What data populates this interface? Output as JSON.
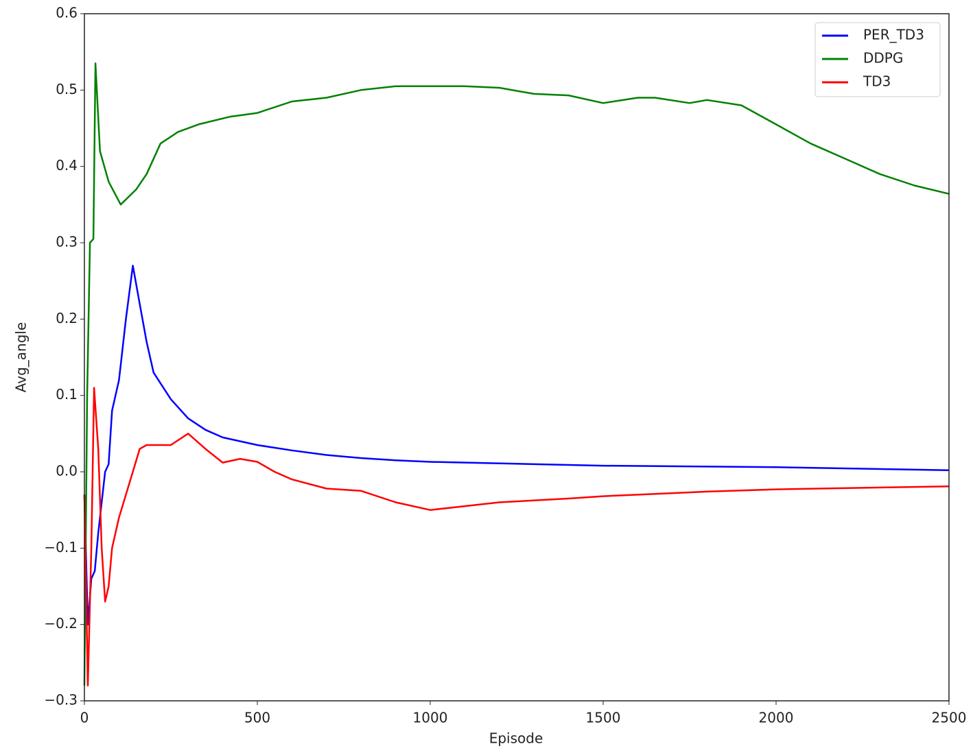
{
  "chart_data": {
    "type": "line",
    "xlabel": "Episode",
    "ylabel": "Avg_angle",
    "xlim": [
      0,
      2500
    ],
    "xticks": [
      0,
      500,
      1000,
      1500,
      2000,
      2500
    ],
    "ylim": [
      -0.3,
      0.6
    ],
    "yticks": [
      {
        "value": -0.3,
        "label": "−0.3"
      },
      {
        "value": -0.2,
        "label": "−0.2"
      },
      {
        "value": -0.1,
        "label": "−0.1"
      },
      {
        "value": 0,
        "label": "0.0"
      },
      0.1,
      0.2,
      0.3,
      0.4,
      0.5,
      0.6
    ],
    "legend": "upper right",
    "series": [
      {
        "name": "PER_TD3",
        "color": "#0000ff",
        "x": [
          0,
          10,
          20,
          30,
          40,
          50,
          60,
          70,
          80,
          100,
          120,
          140,
          160,
          180,
          200,
          250,
          300,
          350,
          400,
          500,
          600,
          700,
          800,
          900,
          1000,
          1300,
          1500,
          2000,
          2500
        ],
        "values": [
          -0.03,
          -0.2,
          -0.14,
          -0.13,
          -0.08,
          -0.04,
          0.0,
          0.01,
          0.08,
          0.12,
          0.2,
          0.27,
          0.22,
          0.17,
          0.13,
          0.095,
          0.07,
          0.055,
          0.045,
          0.035,
          0.028,
          0.022,
          0.018,
          0.015,
          0.013,
          0.01,
          0.008,
          0.006,
          0.002
        ]
      },
      {
        "name": "DDPG",
        "color": "#008000",
        "x": [
          0,
          8,
          16,
          26,
          32,
          45,
          70,
          105,
          150,
          180,
          220,
          270,
          330,
          420,
          500,
          600,
          700,
          800,
          900,
          1000,
          1100,
          1200,
          1300,
          1400,
          1500,
          1600,
          1650,
          1750,
          1800,
          1900,
          2000,
          2100,
          2200,
          2300,
          2400,
          2500
        ],
        "values": [
          -0.28,
          0.1,
          0.3,
          0.305,
          0.535,
          0.42,
          0.38,
          0.35,
          0.37,
          0.39,
          0.43,
          0.445,
          0.455,
          0.465,
          0.47,
          0.485,
          0.49,
          0.5,
          0.505,
          0.505,
          0.505,
          0.503,
          0.495,
          0.493,
          0.483,
          0.49,
          0.49,
          0.483,
          0.487,
          0.48,
          0.455,
          0.43,
          0.41,
          0.39,
          0.375,
          0.364
        ]
      },
      {
        "name": "TD3",
        "color": "#ff0000",
        "x": [
          0,
          10,
          20,
          28,
          40,
          50,
          60,
          70,
          80,
          100,
          120,
          140,
          160,
          180,
          200,
          250,
          300,
          350,
          400,
          450,
          500,
          550,
          600,
          700,
          800,
          900,
          1000,
          1100,
          1200,
          1400,
          1500,
          1600,
          1800,
          2000,
          2500
        ],
        "values": [
          -0.03,
          -0.28,
          -0.1,
          0.11,
          0.03,
          -0.1,
          -0.17,
          -0.15,
          -0.1,
          -0.06,
          -0.03,
          0.0,
          0.03,
          0.035,
          0.035,
          0.035,
          0.05,
          0.03,
          0.012,
          0.017,
          0.013,
          0.0,
          -0.01,
          -0.022,
          -0.025,
          -0.04,
          -0.05,
          -0.045,
          -0.04,
          -0.035,
          -0.032,
          -0.03,
          -0.026,
          -0.023,
          -0.019
        ]
      }
    ]
  }
}
